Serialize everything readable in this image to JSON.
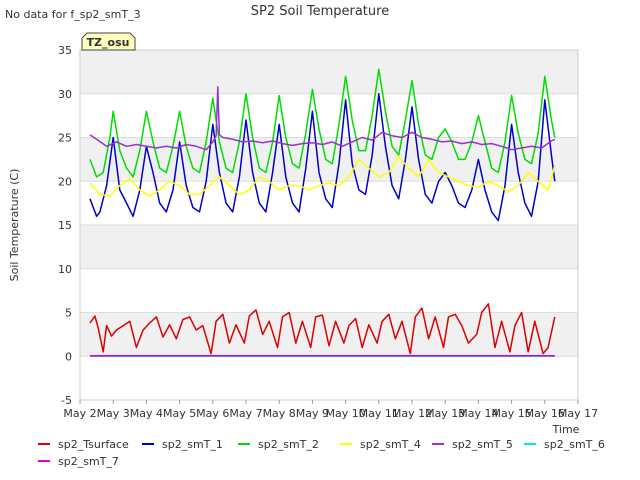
{
  "chart_data": {
    "type": "line",
    "title": "SP2 Soil Temperature",
    "no_data_note": "No data for f_sp2_smT_3",
    "site_badge": "TZ_osu",
    "xlabel": "Time",
    "ylabel": "Soil Temperature (C)",
    "ylim": [
      -5,
      35
    ],
    "yticks": [
      -5,
      0,
      5,
      10,
      15,
      20,
      25,
      30,
      35
    ],
    "xlim": [
      2,
      17
    ],
    "xtick_values": [
      2,
      3,
      4,
      5,
      6,
      7,
      8,
      9,
      10,
      11,
      12,
      13,
      14,
      15,
      16,
      17
    ],
    "xtick_labels": [
      "May 2",
      "May 3",
      "May 4",
      "May 5",
      "May 6",
      "May 7",
      "May 8",
      "May 9",
      "May 10",
      "May 11",
      "May 12",
      "May 13",
      "May 14",
      "May 15",
      "May 16",
      "May 17"
    ],
    "grid": true,
    "legend_position": "bottom",
    "series": [
      {
        "name": "sp2_Tsurface",
        "color": "#dd0000",
        "x": [
          2.3,
          2.45,
          2.55,
          2.7,
          2.8,
          2.95,
          3.1,
          3.3,
          3.5,
          3.7,
          3.9,
          4.1,
          4.3,
          4.5,
          4.7,
          4.9,
          5.1,
          5.3,
          5.5,
          5.7,
          5.95,
          6.1,
          6.3,
          6.5,
          6.7,
          6.95,
          7.1,
          7.3,
          7.5,
          7.7,
          7.95,
          8.1,
          8.3,
          8.5,
          8.7,
          8.95,
          9.1,
          9.3,
          9.5,
          9.7,
          9.95,
          10.1,
          10.3,
          10.5,
          10.7,
          10.95,
          11.1,
          11.3,
          11.5,
          11.7,
          11.95,
          12.1,
          12.3,
          12.5,
          12.7,
          12.95,
          13.1,
          13.3,
          13.5,
          13.7,
          13.95,
          14.1,
          14.3,
          14.5,
          14.7,
          14.95,
          15.1,
          15.3,
          15.5,
          15.7,
          15.95,
          16.1,
          16.3
        ],
        "y": [
          3.8,
          4.6,
          3.2,
          0.5,
          3.5,
          2.3,
          3.0,
          3.5,
          4.0,
          1.0,
          3.0,
          3.8,
          4.5,
          2.2,
          3.6,
          2.0,
          4.2,
          4.5,
          3.0,
          3.5,
          0.3,
          4.0,
          4.8,
          1.5,
          3.6,
          1.5,
          4.6,
          5.3,
          2.5,
          4.0,
          1.0,
          4.5,
          5.0,
          1.5,
          4.0,
          1.0,
          4.5,
          4.7,
          1.2,
          4.0,
          1.5,
          3.5,
          4.3,
          1.0,
          3.6,
          1.5,
          4.0,
          4.8,
          2.0,
          4.0,
          0.3,
          4.5,
          5.5,
          2.0,
          4.5,
          1.0,
          4.5,
          4.8,
          3.5,
          1.5,
          2.5,
          5.0,
          6.0,
          1.0,
          4.0,
          0.5,
          3.5,
          5.0,
          0.5,
          4.0,
          0.3,
          1.0,
          4.5
        ]
      },
      {
        "name": "sp2_smT_1",
        "color": "#0000cc",
        "x": [
          2.3,
          2.5,
          2.6,
          2.8,
          3.0,
          3.2,
          3.4,
          3.6,
          3.8,
          4.0,
          4.2,
          4.4,
          4.6,
          4.8,
          5.0,
          5.2,
          5.4,
          5.6,
          5.8,
          6.0,
          6.2,
          6.4,
          6.6,
          6.8,
          7.0,
          7.2,
          7.4,
          7.6,
          7.8,
          8.0,
          8.2,
          8.4,
          8.6,
          8.8,
          9.0,
          9.2,
          9.4,
          9.6,
          9.8,
          10.0,
          10.2,
          10.4,
          10.6,
          10.8,
          11.0,
          11.2,
          11.4,
          11.6,
          11.8,
          12.0,
          12.2,
          12.4,
          12.6,
          12.8,
          13.0,
          13.2,
          13.4,
          13.6,
          13.8,
          14.0,
          14.2,
          14.4,
          14.6,
          14.8,
          15.0,
          15.2,
          15.4,
          15.6,
          15.8,
          16.0,
          16.2,
          16.3
        ],
        "y": [
          18.0,
          16.0,
          16.5,
          19.5,
          25.0,
          19.0,
          17.5,
          16.0,
          19.0,
          24.0,
          21.0,
          17.5,
          16.5,
          19.0,
          24.5,
          19.5,
          17.0,
          16.5,
          20.0,
          26.5,
          21.0,
          17.5,
          16.5,
          20.5,
          27.0,
          21.0,
          17.5,
          16.5,
          21.0,
          26.5,
          20.5,
          17.5,
          16.5,
          21.5,
          28.0,
          21.0,
          18.0,
          17.0,
          22.0,
          29.3,
          22.0,
          19.0,
          18.5,
          23.0,
          30.0,
          24.0,
          19.5,
          18.0,
          22.5,
          28.5,
          22.5,
          18.5,
          17.5,
          20.0,
          21.0,
          19.5,
          17.5,
          17.0,
          19.0,
          22.5,
          19.0,
          16.5,
          15.5,
          19.5,
          26.5,
          21.0,
          17.5,
          16.0,
          20.0,
          29.3,
          23.0,
          20.0
        ]
      },
      {
        "name": "sp2_smT_2",
        "color": "#00dd00",
        "x": [
          2.3,
          2.5,
          2.7,
          2.9,
          3.0,
          3.2,
          3.4,
          3.6,
          3.8,
          4.0,
          4.2,
          4.4,
          4.6,
          4.8,
          5.0,
          5.2,
          5.4,
          5.6,
          5.8,
          6.0,
          6.2,
          6.4,
          6.6,
          6.8,
          7.0,
          7.2,
          7.4,
          7.6,
          7.8,
          8.0,
          8.2,
          8.4,
          8.6,
          8.8,
          9.0,
          9.2,
          9.4,
          9.6,
          9.8,
          10.0,
          10.2,
          10.4,
          10.6,
          10.8,
          11.0,
          11.2,
          11.4,
          11.6,
          11.8,
          12.0,
          12.2,
          12.4,
          12.6,
          12.8,
          13.0,
          13.2,
          13.4,
          13.6,
          13.8,
          14.0,
          14.2,
          14.4,
          14.6,
          14.8,
          15.0,
          15.2,
          15.4,
          15.6,
          15.8,
          16.0,
          16.2,
          16.3
        ],
        "y": [
          22.5,
          20.5,
          21.0,
          25.0,
          28.0,
          23.5,
          21.5,
          20.5,
          23.5,
          28.0,
          24.5,
          21.5,
          21.0,
          24.0,
          28.0,
          24.0,
          21.5,
          21.0,
          24.5,
          29.5,
          24.5,
          21.5,
          21.0,
          24.5,
          30.0,
          25.0,
          21.5,
          21.0,
          24.5,
          29.8,
          25.0,
          22.0,
          21.5,
          25.5,
          30.5,
          26.0,
          22.5,
          22.0,
          26.5,
          32.0,
          27.0,
          23.5,
          23.5,
          27.5,
          32.8,
          28.0,
          24.0,
          23.0,
          27.0,
          31.5,
          26.5,
          23.0,
          22.5,
          25.0,
          26.0,
          24.5,
          22.5,
          22.5,
          24.5,
          27.5,
          24.5,
          21.5,
          21.0,
          24.5,
          29.8,
          25.5,
          22.5,
          22.0,
          25.5,
          32.0,
          27.0,
          25.0
        ]
      },
      {
        "name": "sp2_smT_4",
        "color": "#ffff00",
        "x": [
          2.3,
          2.6,
          2.9,
          3.2,
          3.5,
          3.8,
          4.1,
          4.4,
          4.7,
          5.0,
          5.3,
          5.6,
          5.9,
          6.2,
          6.5,
          6.8,
          7.1,
          7.4,
          7.7,
          8.0,
          8.3,
          8.6,
          8.9,
          9.2,
          9.5,
          9.8,
          10.1,
          10.4,
          10.7,
          11.0,
          11.3,
          11.6,
          11.9,
          12.2,
          12.5,
          12.8,
          13.1,
          13.4,
          13.7,
          14.0,
          14.3,
          14.6,
          14.9,
          15.2,
          15.5,
          15.8,
          16.1,
          16.3
        ],
        "y": [
          19.8,
          18.5,
          18.3,
          19.5,
          20.3,
          19.0,
          18.3,
          19.0,
          20.0,
          19.5,
          18.5,
          18.5,
          19.5,
          20.5,
          19.5,
          18.5,
          19.0,
          20.5,
          20.0,
          19.0,
          19.5,
          19.5,
          19.0,
          19.5,
          19.8,
          19.5,
          20.5,
          22.5,
          21.5,
          20.5,
          21.0,
          22.8,
          21.5,
          20.5,
          22.5,
          21.0,
          20.5,
          20.0,
          19.5,
          19.3,
          20.0,
          19.5,
          18.8,
          19.5,
          21.0,
          20.0,
          19.0,
          21.8
        ]
      },
      {
        "name": "sp2_smT_5",
        "color": "#9933cc",
        "x": [
          2.3,
          2.5,
          2.8,
          3.1,
          3.4,
          3.7,
          4.0,
          4.3,
          4.6,
          4.9,
          5.2,
          5.5,
          5.8,
          6.0,
          6.1,
          6.15,
          6.2,
          6.3,
          6.6,
          6.9,
          7.2,
          7.5,
          7.8,
          8.1,
          8.4,
          8.7,
          9.0,
          9.3,
          9.6,
          9.9,
          10.2,
          10.5,
          10.8,
          11.1,
          11.4,
          11.7,
          12.0,
          12.3,
          12.6,
          12.9,
          13.2,
          13.5,
          13.8,
          14.1,
          14.4,
          14.7,
          15.0,
          15.3,
          15.6,
          15.9,
          16.2,
          16.3
        ],
        "y": [
          25.3,
          24.8,
          24.0,
          24.5,
          24.0,
          24.2,
          24.0,
          23.8,
          24.0,
          23.8,
          24.2,
          24.0,
          23.6,
          24.5,
          25.2,
          30.8,
          25.3,
          25.0,
          24.8,
          24.5,
          24.6,
          24.4,
          24.6,
          24.3,
          24.1,
          24.3,
          24.4,
          24.2,
          24.5,
          24.0,
          24.5,
          25.0,
          24.7,
          25.6,
          25.2,
          25.0,
          25.6,
          25.0,
          24.8,
          24.5,
          24.6,
          24.3,
          24.5,
          24.2,
          24.3,
          24.0,
          23.6,
          23.8,
          24.0,
          23.8,
          24.6,
          24.8
        ]
      },
      {
        "name": "sp2_smT_6",
        "color": "#00e5ee",
        "x": [
          2.3,
          16.3
        ],
        "y": [
          0.0,
          0.0
        ]
      },
      {
        "name": "sp2_smT_7",
        "color": "#dd00dd",
        "x": [
          2.3,
          16.3
        ],
        "y": [
          0.05,
          0.05
        ]
      }
    ]
  }
}
